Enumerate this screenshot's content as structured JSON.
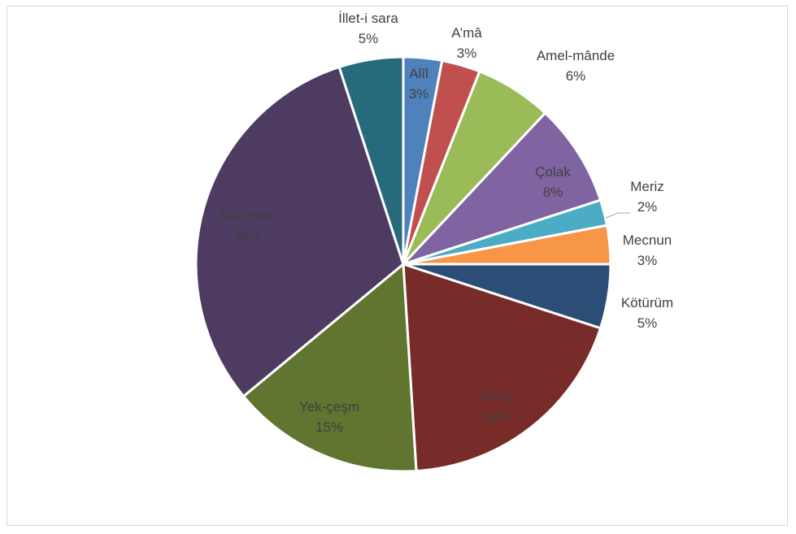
{
  "chart_data": {
    "type": "pie",
    "title": "",
    "slices": [
      {
        "label": "Alîl",
        "percent_label": "3%",
        "value": 3,
        "color": "#4F81BD",
        "text_color": "#404040"
      },
      {
        "label": "A’mâ",
        "percent_label": "3%",
        "value": 3,
        "color": "#C0504D",
        "text_color": "#404040"
      },
      {
        "label": "Amel-mânde",
        "percent_label": "6%",
        "value": 6,
        "color": "#9BBB59",
        "text_color": "#404040"
      },
      {
        "label": "Çolak",
        "percent_label": "8%",
        "value": 8,
        "color": "#8064A2",
        "text_color": "#404040"
      },
      {
        "label": "Meriz",
        "percent_label": "2%",
        "value": 2,
        "color": "#4BACC6",
        "text_color": "#404040"
      },
      {
        "label": "Mecnun",
        "percent_label": "3%",
        "value": 3,
        "color": "#F79646",
        "text_color": "#404040"
      },
      {
        "label": "Kötürüm",
        "percent_label": "5%",
        "value": 5,
        "color": "#2C4D75",
        "text_color": "#404040"
      },
      {
        "label": "A’reç",
        "percent_label": "19%",
        "value": 19,
        "color": "#772C2A",
        "text_color": "#404040"
      },
      {
        "label": "Yek-çeşm",
        "percent_label": "15%",
        "value": 15,
        "color": "#5F7530",
        "text_color": "#404040"
      },
      {
        "label": "Bila evlat",
        "percent_label": "31%",
        "value": 31,
        "color": "#4D3B62",
        "text_color": "#404040"
      },
      {
        "label": "İllet-i sara",
        "percent_label": "5%",
        "value": 5,
        "color": "#276A7C",
        "text_color": "#404040"
      }
    ]
  }
}
